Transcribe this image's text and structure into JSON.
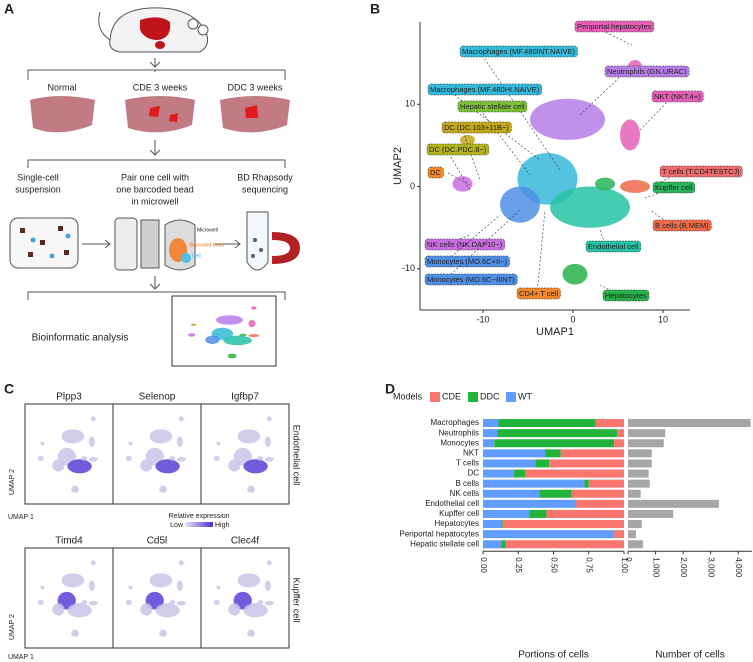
{
  "panel_labels": [
    "A",
    "B",
    "C",
    "D"
  ],
  "panel_a": {
    "conditions": [
      "Normal",
      "CDE 3 weeks",
      "DDC 3 weeks"
    ],
    "steps": [
      "Single-cell",
      "suspension",
      "Pair one cell with",
      "one barcoded bead",
      "in microwell",
      "BD Rhapsody",
      "sequencing"
    ],
    "device_labels": [
      "Microwell",
      "Barcoded bead",
      "Cell"
    ],
    "final": "Bioinformatic analysis"
  },
  "panel_c": {
    "top_genes": [
      "Plpp3",
      "Selenop",
      "Igfbp7"
    ],
    "bottom_genes": [
      "Timd4",
      "Cd5l",
      "Clec4f"
    ],
    "top_cell": "Endothelial cell",
    "bottom_cell": "Kupffer cell",
    "xlabel": "UMAP 1",
    "ylabel": "UMAP 2",
    "legend_title": "Relative expression",
    "legend_low": "Low",
    "legend_high": "High"
  },
  "chart_data": [
    {
      "type": "scatter",
      "xlabel": "UMAP1",
      "ylabel": "UMAP2",
      "xlim": [
        -17,
        13
      ],
      "ylim": [
        -15,
        20
      ],
      "xticks": [
        -10,
        0,
        10
      ],
      "yticks": [
        -10,
        0,
        10
      ],
      "annotations": [
        {
          "text": "Periportal hepatocytes",
          "color": "#e55fb7"
        },
        {
          "text": "Macrophages (MF.480INT.NAIVE)",
          "color": "#35b9d9"
        },
        {
          "text": "Neutrophils (GN.URAC)",
          "color": "#b57de6"
        },
        {
          "text": "Macrophages (MF.480HI.NAIVE)",
          "color": "#35b9d9"
        },
        {
          "text": "NKT (NKT.4+)",
          "color": "#e55fb7"
        },
        {
          "text": "Hepatic stellate cell",
          "color": "#7bc23a"
        },
        {
          "text": "DC (DC.103+11B−)",
          "color": "#c2a81a"
        },
        {
          "text": "DC (DC.PDC.8−)",
          "color": "#b2b51a"
        },
        {
          "text": "DC",
          "color": "#f0892b"
        },
        {
          "text": "T cells (T.CD4TESTCJ)",
          "color": "#ee6b6b"
        },
        {
          "text": "Kupffer cell",
          "color": "#28b55a"
        },
        {
          "text": "B cells (B.MEM)",
          "color": "#f06a4a"
        },
        {
          "text": "NK cells (NK.DAP10−)",
          "color": "#c86ee0"
        },
        {
          "text": "Monocytes (MO.6C+II−)",
          "color": "#4f8fe6"
        },
        {
          "text": "Monocytes (MO.6C−IIINT)",
          "color": "#4f8fe6"
        },
        {
          "text": "Endothelial cell",
          "color": "#26c2a6"
        },
        {
          "text": "CD4+ T cell",
          "color": "#f0892b"
        },
        {
          "text": "Hepatocytes",
          "color": "#2ab04a"
        }
      ]
    },
    {
      "type": "stacked-bar",
      "legend_title": "Models",
      "xlabel": "Portions of cells",
      "categories": [
        "Macrophages",
        "Neutrophils",
        "Monocytes",
        "NKT",
        "T cells",
        "DC",
        "B cells",
        "NK cells",
        "Endothelial cell",
        "Kupffer cell",
        "Hepatocytes",
        "Periportal hepatocytes",
        "Hepatic stellate cell"
      ],
      "series": [
        {
          "name": "CDE",
          "color": "#f8766d",
          "values": [
            0.2,
            0.05,
            0.07,
            0.45,
            0.53,
            0.7,
            0.25,
            0.37,
            0.34,
            0.55,
            0.86,
            0.07,
            0.84
          ]
        },
        {
          "name": "DDC",
          "color": "#22b43a",
          "values": [
            0.69,
            0.85,
            0.85,
            0.11,
            0.1,
            0.08,
            0.03,
            0.23,
            0,
            0.12,
            0.01,
            0,
            0.03
          ]
        },
        {
          "name": "WT",
          "color": "#619cff",
          "values": [
            0.11,
            0.1,
            0.08,
            0.44,
            0.37,
            0.22,
            0.72,
            0.4,
            0.66,
            0.33,
            0.13,
            0.93,
            0.13
          ]
        }
      ],
      "xlim": [
        0,
        1
      ],
      "xticks": [
        {
          "value": 0,
          "label": "0.00"
        },
        0.25,
        {
          "value": 0.5,
          "label": "0.50"
        },
        0.75,
        {
          "value": 1,
          "label": "1.00"
        }
      ]
    },
    {
      "type": "bar",
      "xlabel": "Number of cells",
      "color": "#a6a6a6",
      "values": [
        4450,
        1350,
        1300,
        860,
        860,
        750,
        790,
        460,
        3300,
        1640,
        500,
        290,
        540
      ],
      "xlim": [
        0,
        4500
      ],
      "xticks": [
        0,
        {
          "value": 1000,
          "label": "1,000"
        },
        {
          "value": 2000,
          "label": "2,000"
        },
        {
          "value": 3000,
          "label": "3,000"
        },
        {
          "value": 4000,
          "label": "4,000"
        }
      ]
    }
  ]
}
